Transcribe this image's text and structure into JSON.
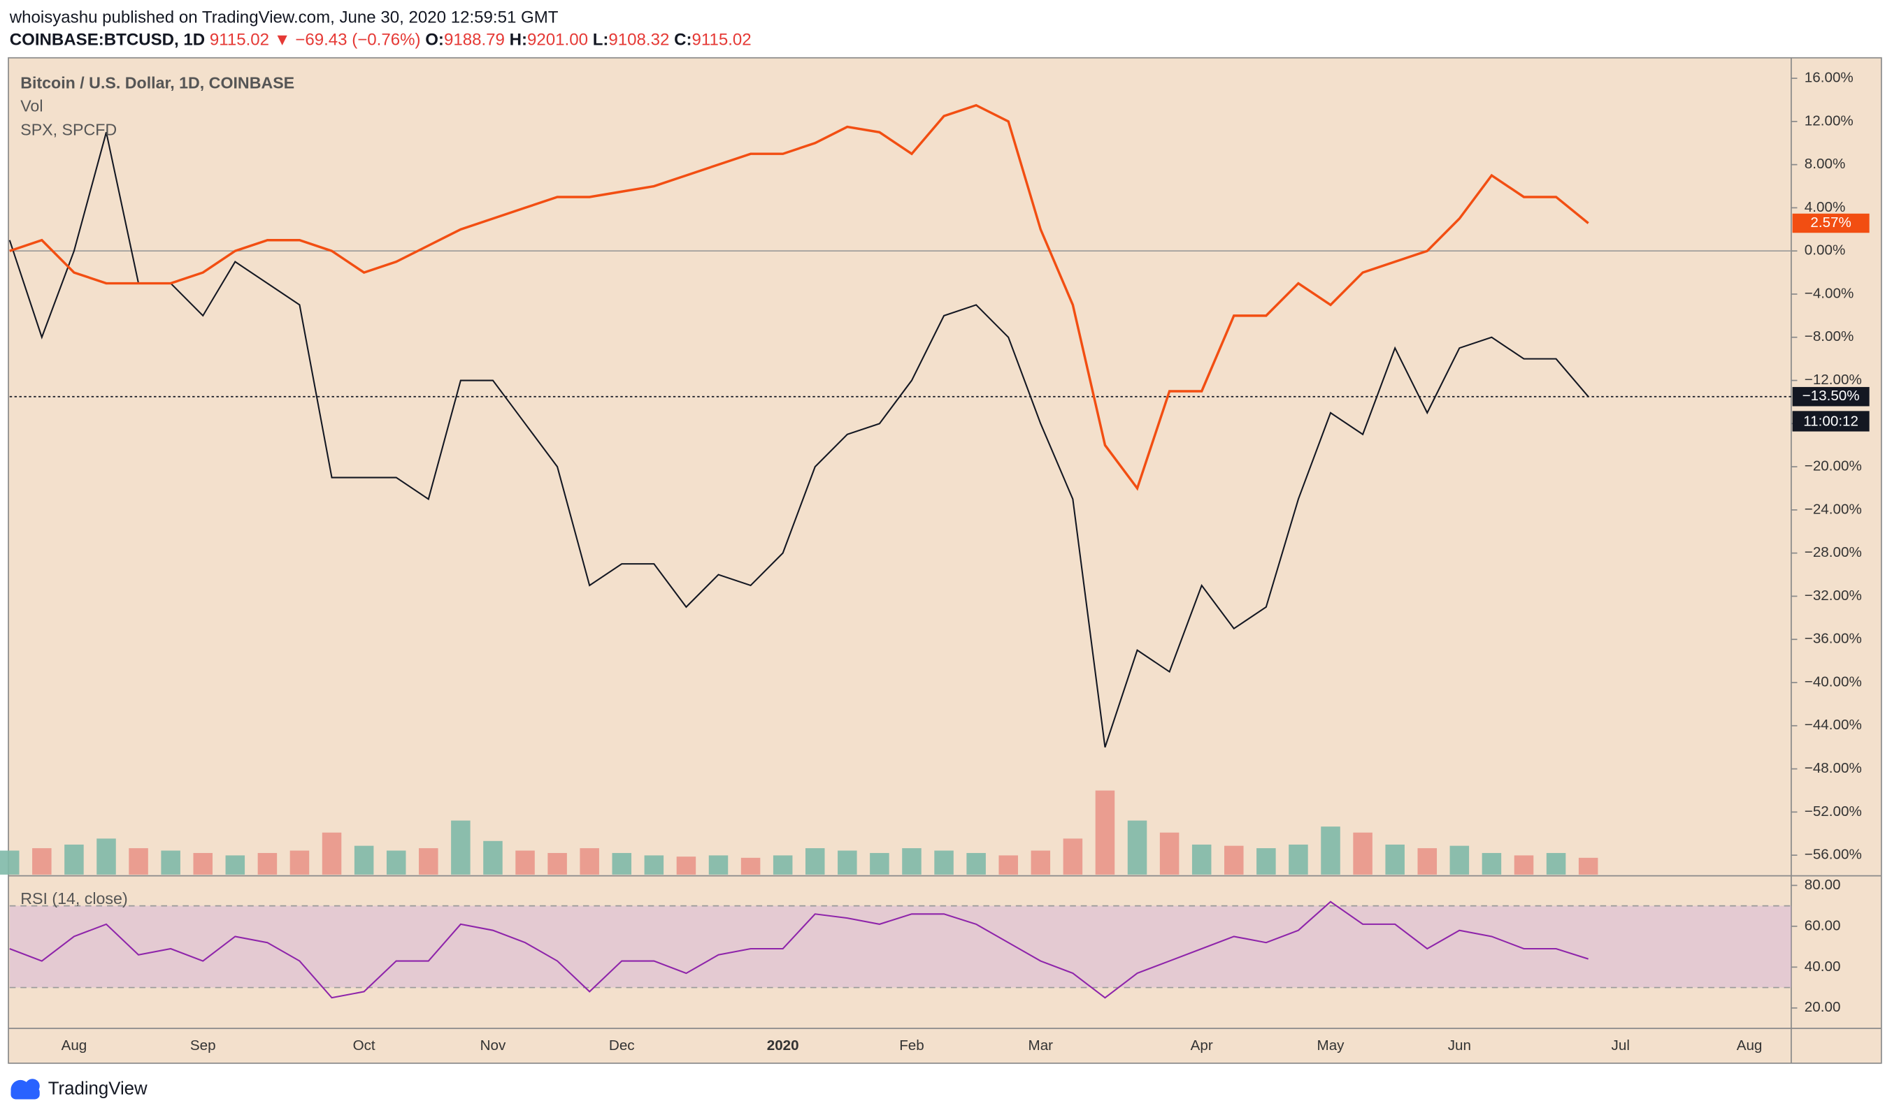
{
  "header": {
    "published": "whoisyashu published on TradingView.com, June 30, 2020 12:59:51 GMT",
    "quote": [
      "COINBASE:BTCUSD, 1D",
      "9115.02",
      "▼",
      "−69.43 (−0.76%)",
      "O:",
      "9188.79",
      "H:",
      "9201.00",
      "L:",
      "9108.32",
      "C:",
      "9115.02"
    ]
  },
  "footer": {
    "brand": "TradingView"
  },
  "chart_data": [
    {
      "type": "line",
      "ylim": [
        -57.8,
        17.9
      ],
      "yticks": [
        {
          "value": 16,
          "label": "16.00%"
        },
        {
          "value": 12,
          "label": "12.00%"
        },
        {
          "value": 8,
          "label": "8.00%"
        },
        {
          "value": 4,
          "label": "4.00%"
        },
        {
          "value": 0,
          "label": "0.00%"
        },
        {
          "value": -4,
          "label": "−4.00%"
        },
        {
          "value": -8,
          "label": "−8.00%"
        },
        {
          "value": -12,
          "label": "−12.00%"
        },
        {
          "value": -16,
          "label": "−16.00%"
        },
        {
          "value": -20,
          "label": "−20.00%"
        },
        {
          "value": -24,
          "label": "−24.00%"
        },
        {
          "value": -28,
          "label": "−28.00%"
        },
        {
          "value": -32,
          "label": "−32.00%"
        },
        {
          "value": -36,
          "label": "−36.00%"
        },
        {
          "value": -40,
          "label": "−40.00%"
        },
        {
          "value": -44,
          "label": "−44.00%"
        },
        {
          "value": -48,
          "label": "−48.00%"
        },
        {
          "value": -52,
          "label": "−52.00%"
        },
        {
          "value": -56,
          "label": "−56.00%"
        }
      ],
      "baseline": 0,
      "countdown": "11:00:12",
      "series": [
        {
          "name": "Bitcoin / U.S. Dollar, 1D, COINBASE",
          "color": "#131722",
          "last_label": "−13.50%",
          "values": [
            1,
            -8,
            0,
            11,
            -3,
            -3,
            -6,
            -1,
            -3,
            -5,
            -21,
            -21,
            -21,
            -23,
            -12,
            -12,
            -16,
            -20,
            -31,
            -29,
            -29,
            -33,
            -30,
            -31,
            -28,
            -20,
            -17,
            -16,
            -12,
            -6,
            -5,
            -8,
            -16,
            -23,
            -46,
            -37,
            -39,
            -31,
            -35,
            -33,
            -23,
            -15,
            -17,
            -9,
            -15,
            -9,
            -8,
            -10,
            -10,
            -13.5,
            null,
            null,
            null,
            null,
            null,
            null
          ]
        },
        {
          "name": "SPX, SPCFD",
          "color": "#f24e12",
          "last_label": "2.57%",
          "values": [
            0,
            1,
            -2,
            -3,
            -3,
            -3,
            -2,
            0,
            1,
            1,
            0,
            -2,
            -1,
            0.5,
            2,
            3,
            4,
            5,
            5,
            5.5,
            6,
            7,
            8,
            9,
            9,
            10,
            11.5,
            11,
            9,
            12.5,
            13.5,
            12,
            2,
            -5,
            -18,
            -22,
            -13,
            -13,
            -6,
            -6,
            -3,
            -5,
            -2,
            -1,
            0,
            3,
            7,
            5,
            5,
            2.57,
            null,
            null,
            null,
            null,
            null,
            null
          ]
        }
      ],
      "volume": {
        "name": "Vol",
        "values": [
          20,
          22,
          25,
          30,
          22,
          20,
          18,
          16,
          18,
          20,
          35,
          24,
          20,
          22,
          45,
          28,
          20,
          18,
          22,
          18,
          16,
          15,
          16,
          14,
          16,
          22,
          20,
          18,
          22,
          20,
          18,
          16,
          20,
          30,
          70,
          45,
          35,
          25,
          24,
          22,
          25,
          40,
          35,
          25,
          22,
          24,
          18,
          16,
          18,
          14,
          null,
          null,
          null,
          null,
          null,
          null
        ]
      }
    },
    {
      "type": "line",
      "ylim": [
        10.6,
        84.1
      ],
      "band": [
        30,
        70
      ],
      "yticks": [
        {
          "value": 80,
          "label": "80.00"
        },
        {
          "value": 60,
          "label": "60.00"
        },
        {
          "value": 40,
          "label": "40.00"
        },
        {
          "value": 20,
          "label": "20.00"
        }
      ],
      "categories": [
        null,
        null,
        "Aug",
        null,
        null,
        null,
        "Sep",
        null,
        null,
        null,
        null,
        "Oct",
        null,
        null,
        null,
        "Nov",
        null,
        null,
        null,
        "Dec",
        null,
        null,
        null,
        null,
        "2020",
        null,
        null,
        null,
        "Feb",
        null,
        null,
        null,
        "Mar",
        null,
        null,
        null,
        null,
        "Apr",
        null,
        null,
        null,
        "May",
        null,
        null,
        null,
        "Jun",
        null,
        null,
        null,
        null,
        "Jul",
        null,
        null,
        null,
        "Aug",
        null
      ],
      "series": [
        {
          "name": "RSI (14, close)",
          "color": "#8e24aa",
          "values": [
            49,
            43,
            55,
            61,
            46,
            49,
            43,
            55,
            52,
            43,
            25,
            28,
            43,
            43,
            61,
            58,
            52,
            43,
            28,
            43,
            43,
            37,
            46,
            49,
            49,
            66,
            64,
            61,
            66,
            66,
            61,
            52,
            43,
            37,
            25,
            37,
            43,
            49,
            55,
            52,
            58,
            72,
            61,
            61,
            49,
            58,
            55,
            49,
            49,
            44,
            null,
            null,
            null,
            null,
            null,
            null
          ]
        }
      ]
    }
  ]
}
